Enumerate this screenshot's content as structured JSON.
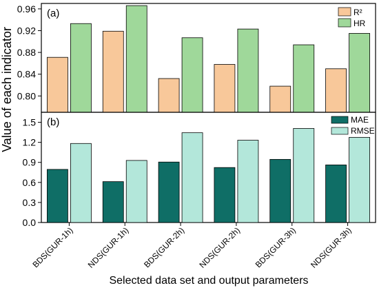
{
  "ylabel": "Value of each indicator",
  "xlabel": "Selected data set and output parameters",
  "categories": [
    "BDS(GUR-1h)",
    "NDS(GUR-1h)",
    "BDS(GUR-2h)",
    "NDS(GUR-2h)",
    "BDS(GUR-3h)",
    "NDS(GUR-3h)"
  ],
  "chart_data": [
    {
      "type": "bar",
      "panel_label": "(a)",
      "categories": [
        "BDS(GUR-1h)",
        "NDS(GUR-1h)",
        "BDS(GUR-2h)",
        "NDS(GUR-2h)",
        "BDS(GUR-3h)",
        "NDS(GUR-3h)"
      ],
      "ylim": [
        0.77,
        0.97
      ],
      "yticks": [
        0.8,
        0.84,
        0.88,
        0.92,
        0.96
      ],
      "ytick_labels": [
        "0.80",
        "0.84",
        "0.88",
        "0.92",
        "0.96"
      ],
      "series": [
        {
          "name": "R²",
          "color": "#f8c89a",
          "values": [
            0.871,
            0.919,
            0.832,
            0.858,
            0.818,
            0.85
          ]
        },
        {
          "name": "HR",
          "color": "#9fd89a",
          "values": [
            0.933,
            0.966,
            0.907,
            0.923,
            0.894,
            0.915
          ]
        }
      ],
      "legend": "top-right",
      "grid": false
    },
    {
      "type": "bar",
      "panel_label": "(b)",
      "categories": [
        "BDS(GUR-1h)",
        "NDS(GUR-1h)",
        "BDS(GUR-2h)",
        "NDS(GUR-2h)",
        "BDS(GUR-3h)",
        "NDS(GUR-3h)"
      ],
      "ylim": [
        0,
        1.65
      ],
      "yticks": [
        0,
        0.3,
        0.6,
        0.9,
        1.2,
        1.5
      ],
      "ytick_labels": [
        "0.0",
        "0.3",
        "0.6",
        "0.9",
        "1.2",
        "1.5"
      ],
      "series": [
        {
          "name": "MAE",
          "color": "#0f6e66",
          "values": [
            0.795,
            0.612,
            0.905,
            0.823,
            0.945,
            0.862
          ]
        },
        {
          "name": "RMSE",
          "color": "#b3e7da",
          "values": [
            1.183,
            0.929,
            1.344,
            1.232,
            1.408,
            1.275
          ]
        }
      ],
      "legend": "top-right",
      "grid": false
    }
  ]
}
